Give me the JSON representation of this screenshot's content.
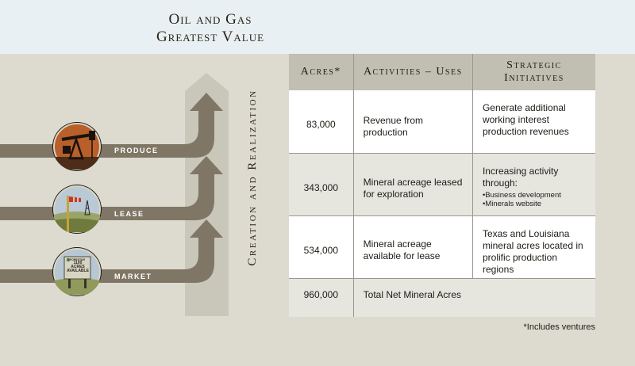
{
  "header": {
    "title_line1": "Oil and Gas",
    "title_line2": "Greatest Value"
  },
  "flow": {
    "vertical_label": "Creation and Realization",
    "steps": [
      {
        "label": "PRODUCE",
        "icon": "pumpjack-icon"
      },
      {
        "label": "LEASE",
        "icon": "windsock-rig-icon"
      },
      {
        "label": "MARKET",
        "icon": "acreage-sign-icon",
        "sign": {
          "brand": "FORESTAR",
          "text": "1100 ACRES AVAILABLE"
        }
      }
    ],
    "colors": {
      "arrow_band": "#7f7665",
      "vertical_arrow": "#c9c7ba"
    }
  },
  "table": {
    "headers": {
      "acres": "Acres*",
      "uses": "Activities – Uses",
      "initiatives": "Strategic Initiatives"
    },
    "rows": [
      {
        "acres": "83,000",
        "uses": "Revenue from production",
        "initiatives": "Generate additional working interest production revenues"
      },
      {
        "acres": "343,000",
        "uses": "Mineral acreage leased for exploration",
        "initiatives": "Increasing activity through:",
        "bullets": [
          "Business development",
          "Minerals website"
        ]
      },
      {
        "acres": "534,000",
        "uses": "Mineral acreage available for lease",
        "initiatives": "Texas and Louisiana mineral acres located in prolific production regions"
      }
    ],
    "total": {
      "acres": "960,000",
      "label": "Total Net Mineral Acres"
    },
    "colors": {
      "header_bg": "#c1bfb1",
      "row_light": "#ffffff",
      "row_dark": "#e6e5de"
    }
  },
  "footnote": "*Includes ventures"
}
